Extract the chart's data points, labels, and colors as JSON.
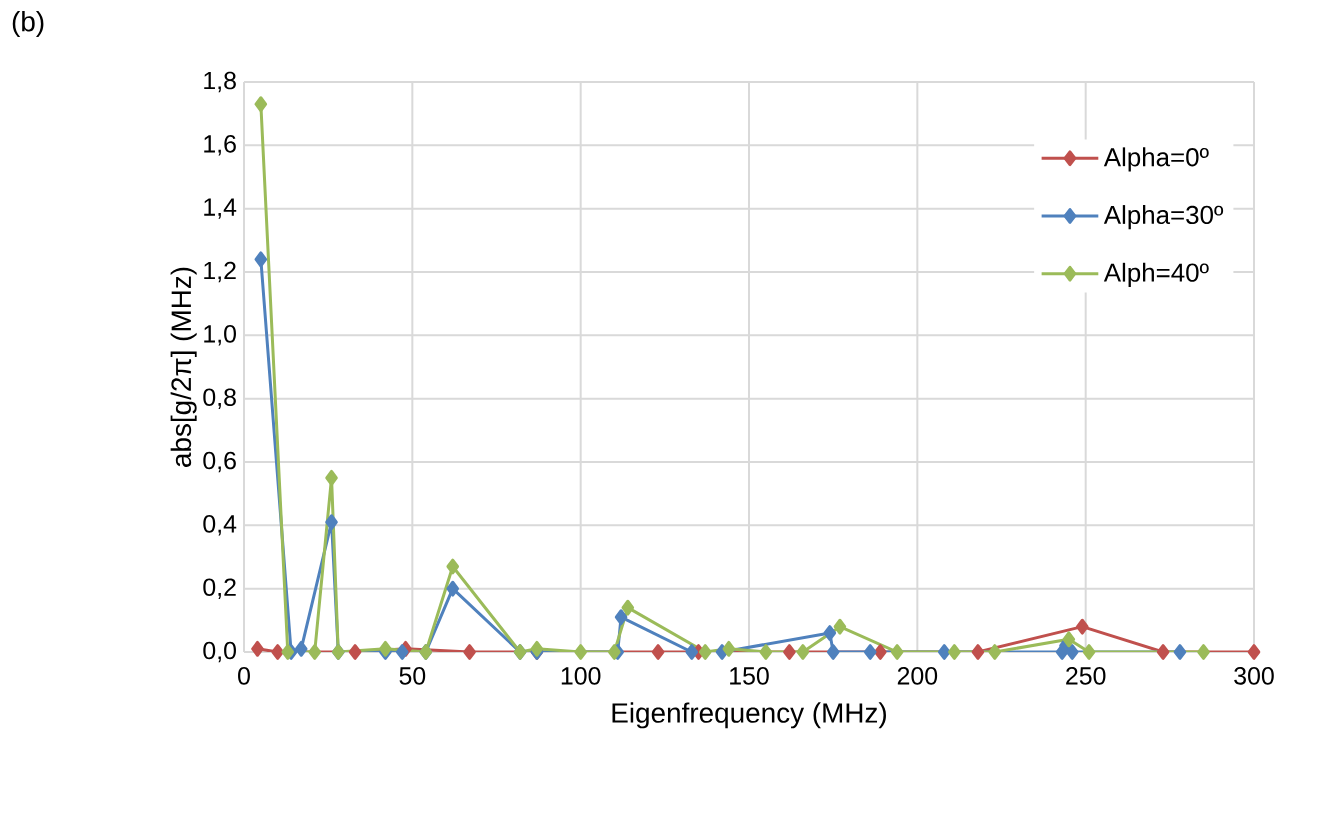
{
  "chart_data": {
    "type": "line",
    "xlabel": "Eigenfrequency (MHz)",
    "ylabel": "abs[g/2π] (MHz)",
    "annotations": [
      "(b)"
    ],
    "xlim": [
      0,
      300
    ],
    "xticks": [
      0,
      50,
      100,
      150,
      200,
      250,
      300
    ],
    "ylim": [
      0,
      1.8
    ],
    "yticks": [
      {
        "value": 0,
        "label": "0,0"
      },
      {
        "value": 0.2,
        "label": "0,2"
      },
      {
        "value": 0.4,
        "label": "0,4"
      },
      {
        "value": 0.6,
        "label": "0,6"
      },
      {
        "value": 0.8,
        "label": "0,8"
      },
      {
        "value": 1.0,
        "label": "1,0"
      },
      {
        "value": 1.2,
        "label": "1,2"
      },
      {
        "value": 1.4,
        "label": "1,4"
      },
      {
        "value": 1.6,
        "label": "1,6"
      },
      {
        "value": 1.8,
        "label": "1,8"
      }
    ],
    "grid": true,
    "legend": "top right",
    "marker": "diamond",
    "line_style": "solid",
    "series": [
      {
        "name": "Alpha=0º",
        "color": "#c0504d",
        "x": [
          4,
          10,
          33,
          48,
          67,
          87,
          123,
          135,
          162,
          189,
          218,
          249,
          273,
          300
        ],
        "values": [
          0.01,
          0,
          0,
          0.01,
          0,
          0,
          0,
          0,
          0,
          0,
          0,
          0.08,
          0,
          0
        ]
      },
      {
        "name": "Alpha=30º",
        "color": "#4f81bd",
        "x": [
          5,
          14,
          17,
          26,
          28,
          42,
          47,
          54,
          62,
          82,
          87,
          111,
          112,
          133,
          142,
          174,
          175,
          186,
          208,
          243,
          244,
          246,
          278
        ],
        "values": [
          1.24,
          0,
          0.01,
          0.41,
          0,
          0,
          0,
          0,
          0.2,
          0,
          0,
          0,
          0.11,
          0,
          0,
          0.06,
          0,
          0,
          0,
          0,
          0.02,
          0,
          0
        ]
      },
      {
        "name": "Alph=40º",
        "color": "#9bbb59",
        "x": [
          5,
          13,
          21,
          26,
          28,
          42,
          54,
          62,
          82,
          87,
          100,
          110,
          114,
          137,
          144,
          155,
          166,
          177,
          194,
          211,
          223,
          245,
          251,
          285
        ],
        "values": [
          1.73,
          0,
          0,
          0.55,
          0,
          0.01,
          0,
          0.27,
          0,
          0.01,
          0,
          0,
          0.14,
          0,
          0.01,
          0,
          0,
          0.08,
          0,
          0,
          0,
          0.04,
          0,
          0
        ]
      }
    ]
  }
}
